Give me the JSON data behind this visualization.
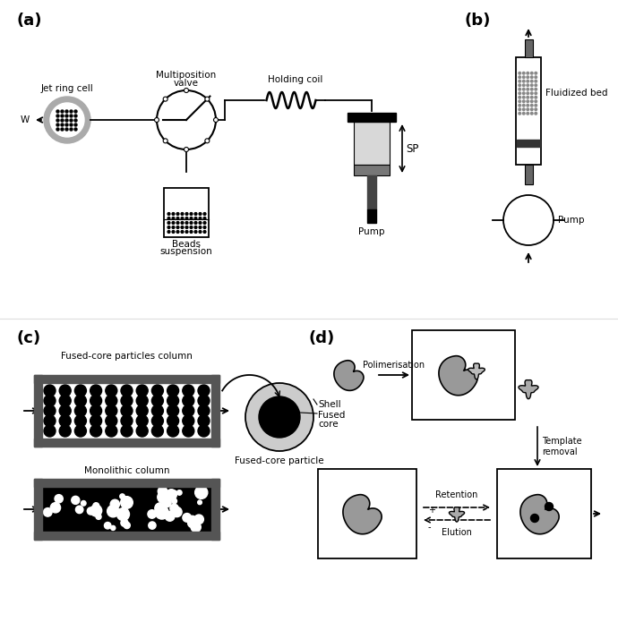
{
  "bg_color": "#ffffff",
  "lc": "#000000",
  "gray1": "#333333",
  "gray2": "#555555",
  "gray3": "#888888",
  "gray4": "#aaaaaa",
  "gray5": "#cccccc",
  "gray6": "#dddddd",
  "gray7": "#999999",
  "panel_label_size": 13,
  "fs": 7.5,
  "afs": 7,
  "panel_a_label": "(a)",
  "panel_b_label": "(b)",
  "panel_c_label": "(c)",
  "panel_d_label": "(d)"
}
